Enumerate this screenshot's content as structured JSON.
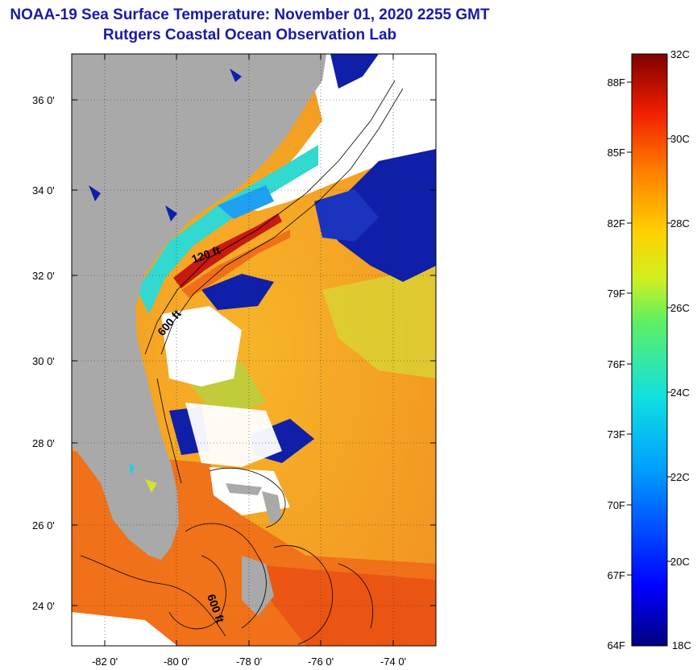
{
  "title": {
    "line1": "NOAA-19 Sea Surface Temperature:  November 01, 2020 2255 GMT",
    "line2": "Rutgers Coastal Ocean Observation Lab"
  },
  "map": {
    "lat_labels": [
      "36 0'",
      "34 0'",
      "32 0'",
      "30 0'",
      "28 0'",
      "26 0'",
      "24 0'"
    ],
    "lon_labels": [
      "-82 0'",
      "-80 0'",
      "-78 0'",
      "-76 0'",
      "-74 0'"
    ],
    "contour_labels": [
      "120 ft",
      "600 ft",
      "600 ft"
    ],
    "colors": {
      "land": "#a9a9a9",
      "cloud": "#ffffff",
      "cold": "#0a1a9a",
      "cool": "#30d0d8",
      "warm": "#f5a020",
      "hot": "#c81a10"
    }
  },
  "colorbar": {
    "celsius_labels": [
      "32C",
      "30C",
      "28C",
      "26C",
      "24C",
      "22C",
      "20C",
      "18C"
    ],
    "fahrenheit_labels": [
      "88F",
      "85F",
      "82F",
      "79F",
      "76F",
      "73F",
      "70F",
      "67F",
      "64F"
    ],
    "range_c": [
      18,
      32
    ],
    "range_f": [
      64,
      90
    ]
  }
}
